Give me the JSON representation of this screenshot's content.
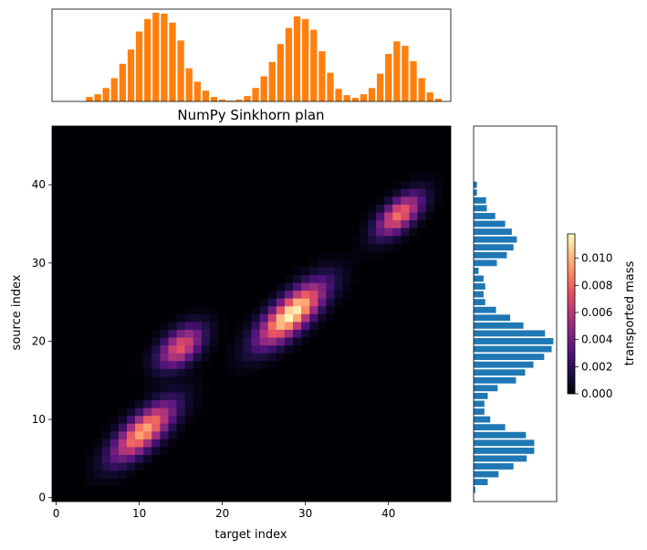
{
  "chart_data": [
    {
      "type": "bar",
      "panel": "top-marginal",
      "x": [
        0,
        1,
        2,
        3,
        4,
        5,
        6,
        7,
        8,
        9,
        10,
        11,
        12,
        13,
        14,
        15,
        16,
        17,
        18,
        19,
        20,
        21,
        22,
        23,
        24,
        25,
        26,
        27,
        28,
        29,
        30,
        31,
        32,
        33,
        34,
        35,
        36,
        37,
        38,
        39,
        40,
        41,
        42,
        43,
        44,
        45,
        46,
        47
      ],
      "values": [
        0,
        0,
        0,
        0,
        0.05,
        0.08,
        0.15,
        0.26,
        0.42,
        0.58,
        0.78,
        0.92,
        0.99,
        0.98,
        0.88,
        0.68,
        0.37,
        0.22,
        0.12,
        0.05,
        0.02,
        0.01,
        0.02,
        0.06,
        0.15,
        0.28,
        0.44,
        0.64,
        0.82,
        0.95,
        0.92,
        0.8,
        0.56,
        0.32,
        0.14,
        0.07,
        0.04,
        0.08,
        0.15,
        0.31,
        0.53,
        0.67,
        0.62,
        0.45,
        0.26,
        0.1,
        0.03,
        0
      ],
      "color": "#ff7f0e",
      "xlim": [
        -0.5,
        47.5
      ]
    },
    {
      "type": "heatmap",
      "panel": "main",
      "title": "NumPy Sinkhorn plan",
      "xlabel": "target index",
      "ylabel": "source index",
      "colormap": "magma",
      "grid_size": [
        48,
        48
      ],
      "xlim": [
        -0.5,
        47.5
      ],
      "ylim": [
        -0.5,
        47.5
      ],
      "xticks": [
        0,
        10,
        20,
        30,
        40
      ],
      "yticks": [
        0,
        10,
        20,
        30,
        40
      ],
      "xtick_labels": [
        "0",
        "10",
        "20",
        "30",
        "40"
      ],
      "ytick_labels": [
        "0",
        "10",
        "20",
        "30",
        "40"
      ],
      "blobs": [
        {
          "target": 10.5,
          "source": 8.5,
          "peak": 0.0098,
          "spread_along": 3.4,
          "spread_across": 1.3
        },
        {
          "target": 15.0,
          "source": 19.3,
          "peak": 0.0075,
          "spread_along": 2.3,
          "spread_across": 1.3
        },
        {
          "target": 28.3,
          "source": 23.5,
          "peak": 0.0118,
          "spread_along": 3.6,
          "spread_across": 1.35
        },
        {
          "target": 41.3,
          "source": 36.2,
          "peak": 0.0083,
          "spread_along": 2.4,
          "spread_across": 1.15
        }
      ]
    },
    {
      "type": "bar",
      "panel": "right-marginal",
      "orientation": "horizontal",
      "y": [
        0,
        1,
        2,
        3,
        4,
        5,
        6,
        7,
        8,
        9,
        10,
        11,
        12,
        13,
        14,
        15,
        16,
        17,
        18,
        19,
        20,
        21,
        22,
        23,
        24,
        25,
        26,
        27,
        28,
        29,
        30,
        31,
        32,
        33,
        34,
        35,
        36,
        37,
        38,
        39,
        40,
        41,
        42,
        43,
        44,
        45,
        46,
        47
      ],
      "values": [
        0,
        0.02,
        0.17,
        0.3,
        0.48,
        0.64,
        0.73,
        0.73,
        0.63,
        0.38,
        0.2,
        0.13,
        0.13,
        0.17,
        0.29,
        0.51,
        0.62,
        0.72,
        0.85,
        0.94,
        0.96,
        0.86,
        0.6,
        0.44,
        0.27,
        0.14,
        0.12,
        0.14,
        0.12,
        0.06,
        0.28,
        0.4,
        0.48,
        0.52,
        0.46,
        0.38,
        0.26,
        0.16,
        0.15,
        0.04,
        0.04,
        0,
        0,
        0,
        0,
        0,
        0,
        0
      ],
      "color": "#1f77b4",
      "ylim": [
        -0.5,
        47.5
      ]
    }
  ],
  "colorbar": {
    "label": "transported mass",
    "range": [
      0,
      0.0118
    ],
    "ticks": [
      0.0,
      0.002,
      0.004,
      0.006,
      0.008,
      0.01
    ],
    "tick_labels": [
      "0.000",
      "0.002",
      "0.004",
      "0.006",
      "0.008",
      "0.010"
    ]
  }
}
